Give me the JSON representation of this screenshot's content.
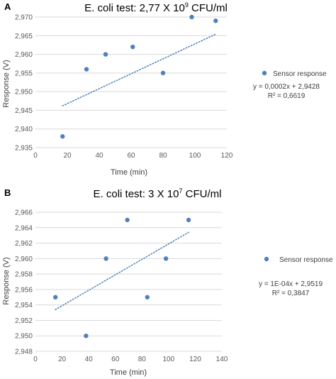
{
  "figure": {
    "panels": [
      "A",
      "B"
    ]
  },
  "chart_data": [
    {
      "type": "scatter",
      "panel": "A",
      "title": "E. coli test: 2,77 X 10",
      "title_superscript": "9",
      "title_suffix": " CFU/ml",
      "xlabel": "Time (min)",
      "ylabel": "Response (V)",
      "xlim": [
        0,
        120
      ],
      "ylim": [
        2.935,
        2.97
      ],
      "xticks": [
        0,
        20,
        40,
        60,
        80,
        100,
        120
      ],
      "xtick_labels": [
        "0",
        "20",
        "40",
        "60",
        "80",
        "100",
        "120"
      ],
      "yticks": [
        2.935,
        2.94,
        2.945,
        2.95,
        2.955,
        2.96,
        2.965,
        2.97
      ],
      "ytick_labels": [
        "2,935",
        "2,940",
        "2,945",
        "2,950",
        "2,955",
        "2,960",
        "2,965",
        "2,970"
      ],
      "grid": "horizontal",
      "legend_position": "right",
      "series": [
        {
          "name": "Sensor response",
          "color": "#4f81bd",
          "x": [
            17,
            32,
            44,
            61,
            80,
            98,
            113
          ],
          "y": [
            2.938,
            2.956,
            2.96,
            2.962,
            2.955,
            2.97,
            2.969
          ]
        }
      ],
      "trendline": {
        "style": "dotted",
        "color": "#4f81bd",
        "slope": 0.0002,
        "intercept": 2.9428,
        "x_range": [
          17,
          113
        ],
        "equation": "y = 0,0002x + 2,9428",
        "r2": "R² = 0,6619"
      }
    },
    {
      "type": "scatter",
      "panel": "B",
      "title": "E. coli test: 3 X 10",
      "title_superscript": "7",
      "title_suffix": " CFU/ml",
      "xlabel": "Time (min)",
      "ylabel": "Response (V)",
      "xlim": [
        0,
        140
      ],
      "ylim": [
        2.948,
        2.966
      ],
      "xticks": [
        0,
        20,
        40,
        60,
        80,
        100,
        120,
        140
      ],
      "xtick_labels": [
        "0",
        "20",
        "40",
        "60",
        "80",
        "100",
        "120",
        "140"
      ],
      "yticks": [
        2.948,
        2.95,
        2.952,
        2.954,
        2.956,
        2.958,
        2.96,
        2.962,
        2.964,
        2.966
      ],
      "ytick_labels": [
        "2,948",
        "2,950",
        "2,952",
        "2,954",
        "2,956",
        "2,958",
        "2,960",
        "2,962",
        "2,964",
        "2,966"
      ],
      "grid": "horizontal",
      "legend_position": "right",
      "series": [
        {
          "name": "Sensor response",
          "color": "#4f81bd",
          "x": [
            15,
            38,
            53,
            69,
            84,
            98,
            115
          ],
          "y": [
            2.955,
            2.95,
            2.96,
            2.965,
            2.955,
            2.96,
            2.965
          ]
        }
      ],
      "trendline": {
        "style": "dotted",
        "color": "#4f81bd",
        "slope": 0.0001,
        "intercept": 2.9519,
        "x_range": [
          15,
          115
        ],
        "equation": "y = 1E-04x + 2,9519",
        "r2": "R² = 0,3847"
      }
    }
  ]
}
